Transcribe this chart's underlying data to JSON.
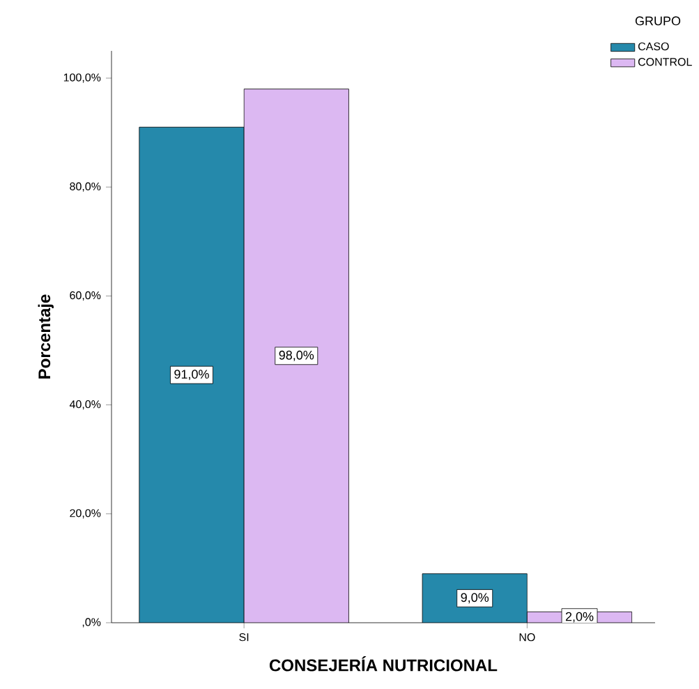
{
  "chart_data": {
    "type": "bar",
    "xlabel": "CONSEJERÍA NUTRICIONAL",
    "ylabel": "Porcentaje",
    "legend_title": "GRUPO",
    "categories": [
      "SI",
      "NO"
    ],
    "series": [
      {
        "name": "CASO",
        "color": "#2589ab",
        "values": [
          91,
          9
        ],
        "value_labels": [
          "91,0%",
          "9,0%"
        ]
      },
      {
        "name": "CONTROL",
        "color": "#dcb8f2",
        "values": [
          98,
          2
        ],
        "value_labels": [
          "98,0%",
          "2,0%"
        ]
      }
    ],
    "ylim": [
      0,
      105
    ],
    "yticks": [
      {
        "value": 0,
        "label": ",0%"
      },
      {
        "value": 20,
        "label": "20,0%"
      },
      {
        "value": 40,
        "label": "40,0%"
      },
      {
        "value": 60,
        "label": "60,0%"
      },
      {
        "value": 80,
        "label": "80,0%"
      },
      {
        "value": 100,
        "label": "100,0%"
      }
    ],
    "legend": "top right"
  }
}
